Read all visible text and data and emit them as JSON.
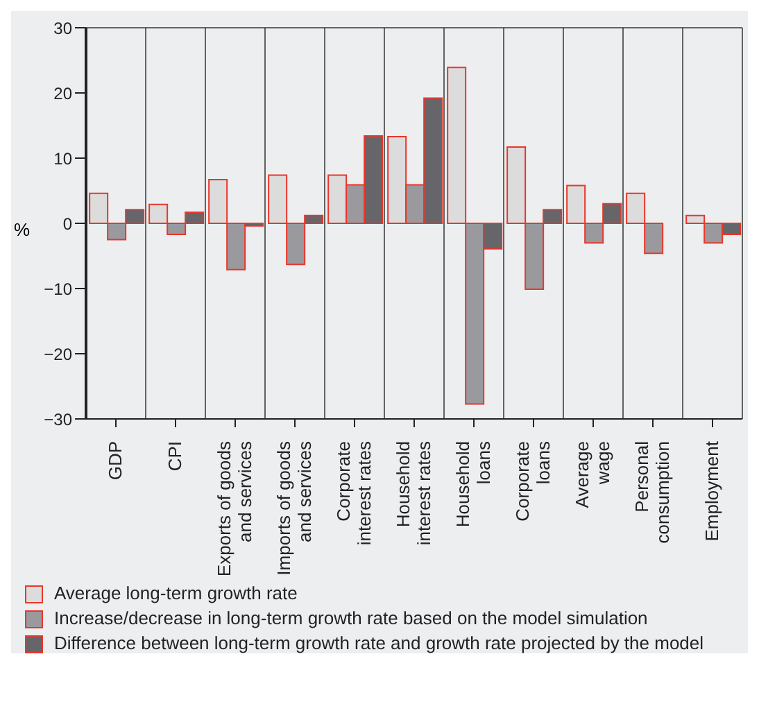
{
  "chart_data": {
    "type": "bar",
    "ylabel": "%",
    "categories": [
      "GDP",
      "CPI",
      "Exports of goods\nand services",
      "Imports of goods\nand services",
      "Corporate\ninterest rates",
      "Household\ninterest rates",
      "Household\nloans",
      "Corporate\nloans",
      "Average\nwage",
      "Personal\nconsumption",
      "Employment"
    ],
    "series": [
      {
        "name": "Average long-term growth rate",
        "color": "#dcdcdc",
        "values": [
          4.6,
          2.9,
          6.7,
          7.4,
          7.4,
          13.3,
          23.9,
          11.7,
          5.8,
          4.6,
          1.2
        ]
      },
      {
        "name": "Increase/decrease in long-term growth rate based on the model simulation",
        "color": "#9a999e",
        "values": [
          -2.5,
          -1.7,
          -7.1,
          -6.3,
          5.9,
          5.9,
          -27.7,
          -10.1,
          -3.0,
          -4.6,
          -3.0
        ]
      },
      {
        "name": "Difference between long-term growth rate and growth rate projected by the model",
        "color": "#66656a",
        "values": [
          2.1,
          1.7,
          -0.4,
          1.2,
          13.4,
          19.2,
          -3.9,
          2.1,
          3.0,
          null,
          -1.7
        ]
      }
    ],
    "ylim": [
      -30,
      30
    ],
    "yticks": [
      -30,
      -20,
      -10,
      0,
      10,
      20,
      30
    ],
    "grid": true,
    "legend": "bottom"
  }
}
